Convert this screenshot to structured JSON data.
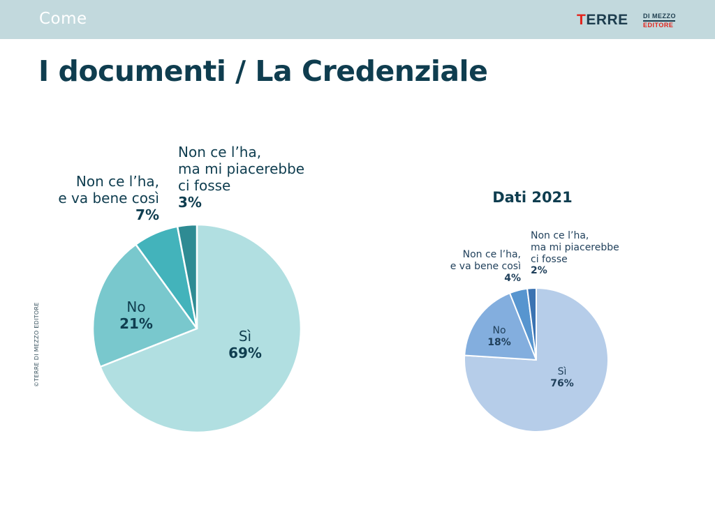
{
  "header": {
    "section": "Come",
    "logo": {
      "main_first": "T",
      "main_rest": "ERRE",
      "top": "DI MEZZO",
      "bottom": "EDITORE"
    }
  },
  "title": "I documenti / La Credenziale",
  "copyright": "©TERRE DI MEZZO EDITORE",
  "chart_data": [
    {
      "type": "pie",
      "title": "",
      "slices": [
        {
          "label": "Sì",
          "value": 69,
          "display": "69%",
          "color": "#b1dfe1"
        },
        {
          "label": "No",
          "value": 21,
          "display": "21%",
          "color": "#79c8cd"
        },
        {
          "label": "Non ce l’ha, e va bene così",
          "lines": [
            "Non ce l’ha,",
            "e va bene così"
          ],
          "value": 7,
          "display": "7%",
          "color": "#43b3bb"
        },
        {
          "label": "Non ce l’ha, ma mi piacerebbe ci fosse",
          "lines": [
            "Non ce l’ha,",
            "ma mi piacerebbe",
            "ci fosse"
          ],
          "value": 3,
          "display": "3%",
          "color": "#2e8b93"
        }
      ]
    },
    {
      "type": "pie",
      "title": "Dati 2021",
      "slices": [
        {
          "label": "Sì",
          "value": 76,
          "display": "76%",
          "color": "#b6cde9"
        },
        {
          "label": "No",
          "value": 18,
          "display": "18%",
          "color": "#83aede"
        },
        {
          "label": "Non ce l’ha, e va bene così",
          "lines": [
            "Non ce l’ha,",
            "e va bene così"
          ],
          "value": 4,
          "display": "4%",
          "color": "#5795cf"
        },
        {
          "label": "Non ce l’ha, ma mi piacerebbe ci fosse",
          "lines": [
            "Non ce l’ha,",
            "ma mi piacerebbe",
            "ci fosse"
          ],
          "value": 2,
          "display": "2%",
          "color": "#3b73b2"
        }
      ]
    }
  ]
}
